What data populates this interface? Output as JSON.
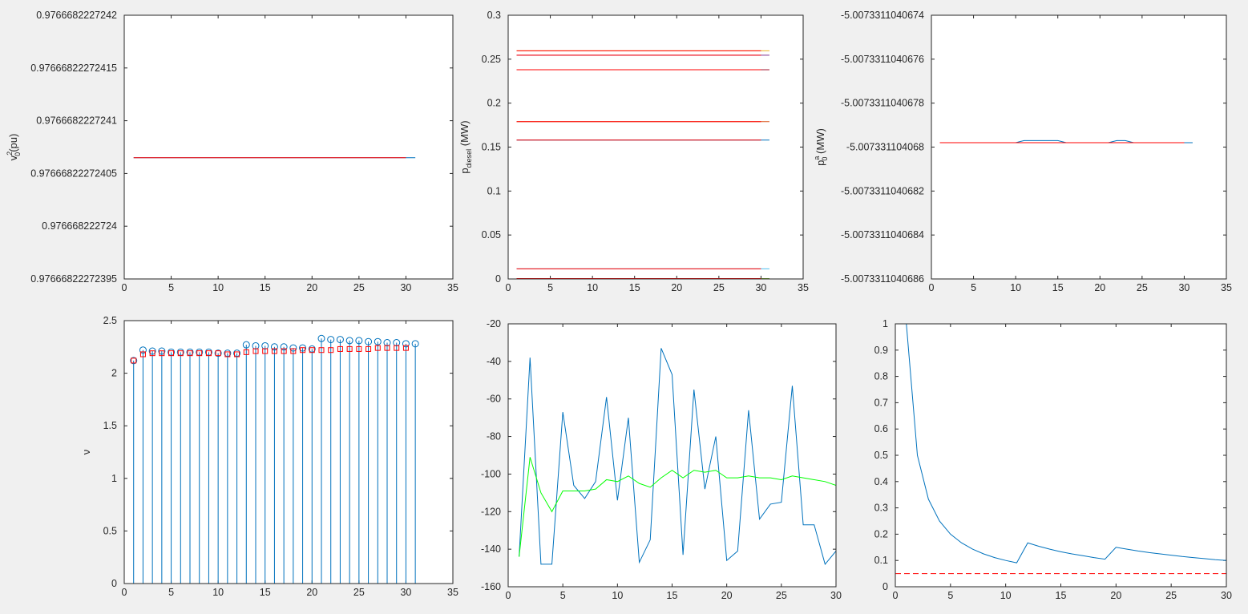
{
  "chart_data": [
    {
      "type": "line",
      "ylabel": {
        "main": "v",
        "sup": "2",
        "sub": "0",
        "unit": "(pu)"
      },
      "xlim": [
        0,
        35
      ],
      "ylim": [
        0.97666822272395,
        0.9766682227242
      ],
      "xticks": [
        "0",
        "5",
        "10",
        "15",
        "20",
        "25",
        "30",
        "35"
      ],
      "yticks": [
        "0.97666822272395",
        "0.976668222724",
        "0.97666822272405",
        "0.9766682227241",
        "0.97666822272415",
        "0.9766682227242"
      ],
      "series": [
        {
          "color": "#0072bd",
          "x": [
            1,
            31
          ],
          "y": [
            0.976668222724065,
            0.976668222724065
          ]
        },
        {
          "color": "#ff0000",
          "x": [
            1,
            30
          ],
          "y": [
            0.976668222724065,
            0.976668222724065
          ]
        }
      ]
    },
    {
      "type": "line",
      "ylabel": {
        "main": "p",
        "sub": "diesel",
        "unit": " (MW)"
      },
      "xlim": [
        0,
        35
      ],
      "ylim": [
        0,
        0.3
      ],
      "xticks": [
        "0",
        "5",
        "10",
        "15",
        "20",
        "25",
        "30",
        "35"
      ],
      "yticks": [
        "0",
        "0.05",
        "0.1",
        "0.15",
        "0.2",
        "0.25",
        "0.3"
      ],
      "series": [
        {
          "color": "#edb120",
          "x": [
            1,
            31
          ],
          "y": [
            0.2595,
            0.2595
          ]
        },
        {
          "color": "#ff0000",
          "x": [
            1,
            30
          ],
          "y": [
            0.2595,
            0.2595
          ]
        },
        {
          "color": "#7e2f8e",
          "x": [
            1,
            31
          ],
          "y": [
            0.2545,
            0.2545
          ]
        },
        {
          "color": "#ff0000",
          "x": [
            1,
            30
          ],
          "y": [
            0.2545,
            0.2545
          ]
        },
        {
          "color": "#a2142f",
          "x": [
            1,
            31
          ],
          "y": [
            0.238,
            0.238
          ]
        },
        {
          "color": "#ff0000",
          "x": [
            1,
            30
          ],
          "y": [
            0.238,
            0.238
          ]
        },
        {
          "color": "#d95319",
          "x": [
            1,
            31
          ],
          "y": [
            0.179,
            0.179
          ]
        },
        {
          "color": "#ff0000",
          "x": [
            1,
            30
          ],
          "y": [
            0.179,
            0.179
          ]
        },
        {
          "color": "#0072bd",
          "x": [
            1,
            31
          ],
          "y": [
            0.158,
            0.158
          ]
        },
        {
          "color": "#ff0000",
          "x": [
            1,
            30
          ],
          "y": [
            0.158,
            0.158
          ]
        },
        {
          "color": "#4dbeee",
          "x": [
            1,
            31
          ],
          "y": [
            0.0115,
            0.0115
          ]
        },
        {
          "color": "#ff0000",
          "x": [
            1,
            30
          ],
          "y": [
            0.0115,
            0.0115
          ]
        },
        {
          "color": "#77ac30",
          "x": [
            1,
            31
          ],
          "y": [
            0.0005,
            0.0005
          ]
        },
        {
          "color": "#ff0000",
          "x": [
            1,
            30
          ],
          "y": [
            0.0005,
            0.0005
          ]
        }
      ]
    },
    {
      "type": "line",
      "ylabel": {
        "main": "p",
        "sup": "a",
        "sub": "0",
        "unit": " (MW)"
      },
      "xlim": [
        0,
        35
      ],
      "ylim": [
        -5.0073311040686,
        -5.0073311040674
      ],
      "xticks": [
        "0",
        "5",
        "10",
        "15",
        "20",
        "25",
        "30",
        "35"
      ],
      "yticks": [
        "-5.0073311040686",
        "-5.0073311040684",
        "-5.0073311040682",
        "-5.007331104068",
        "-5.0073311040678",
        "-5.0073311040676",
        "-5.0073311040674"
      ],
      "series": [
        {
          "color": "#0072bd",
          "x": [
            1,
            10,
            11,
            15,
            16,
            21,
            22,
            23,
            24,
            31
          ],
          "y": [
            -5.00733110406798,
            -5.00733110406798,
            -5.00733110406797,
            -5.00733110406797,
            -5.00733110406798,
            -5.00733110406798,
            -5.00733110406797,
            -5.00733110406797,
            -5.00733110406798,
            -5.00733110406798
          ]
        },
        {
          "color": "#ff0000",
          "x": [
            1,
            30
          ],
          "y": [
            -5.00733110406798,
            -5.00733110406798
          ]
        }
      ]
    },
    {
      "type": "stem",
      "ylabel": {
        "main": "ν"
      },
      "xlim": [
        0,
        35
      ],
      "ylim": [
        0,
        2.5
      ],
      "xticks": [
        "0",
        "5",
        "10",
        "15",
        "20",
        "25",
        "30",
        "35"
      ],
      "yticks": [
        "0",
        "0.5",
        "1",
        "1.5",
        "2",
        "2.5"
      ],
      "stem": {
        "color": "#0072bd",
        "x": [
          1,
          2,
          3,
          4,
          5,
          6,
          7,
          8,
          9,
          10,
          11,
          12,
          13,
          14,
          15,
          16,
          17,
          18,
          19,
          20,
          21,
          22,
          23,
          24,
          25,
          26,
          27,
          28,
          29,
          30,
          31
        ],
        "y": [
          2.12,
          2.22,
          2.21,
          2.21,
          2.2,
          2.2,
          2.2,
          2.2,
          2.2,
          2.19,
          2.19,
          2.19,
          2.27,
          2.26,
          2.26,
          2.25,
          2.25,
          2.24,
          2.24,
          2.23,
          2.33,
          2.32,
          2.32,
          2.31,
          2.31,
          2.3,
          2.3,
          2.29,
          2.29,
          2.28,
          2.28
        ]
      },
      "markers": {
        "color": "#ff0000",
        "x": [
          1,
          2,
          3,
          4,
          5,
          6,
          7,
          8,
          9,
          10,
          11,
          12,
          13,
          14,
          15,
          16,
          17,
          18,
          19,
          20,
          21,
          22,
          23,
          24,
          25,
          26,
          27,
          28,
          29,
          30
        ],
        "y": [
          2.12,
          2.18,
          2.19,
          2.19,
          2.19,
          2.19,
          2.19,
          2.19,
          2.19,
          2.19,
          2.18,
          2.18,
          2.2,
          2.21,
          2.21,
          2.21,
          2.21,
          2.21,
          2.22,
          2.22,
          2.22,
          2.22,
          2.23,
          2.23,
          2.23,
          2.23,
          2.24,
          2.24,
          2.24,
          2.24
        ]
      }
    },
    {
      "type": "line",
      "xlim": [
        0,
        30
      ],
      "ylim": [
        -160,
        -20
      ],
      "xticks": [
        "0",
        "5",
        "10",
        "15",
        "20",
        "25",
        "30"
      ],
      "yticks": [
        "-160",
        "-140",
        "-120",
        "-100",
        "-80",
        "-60",
        "-40",
        "-20"
      ],
      "series": [
        {
          "color": "#0072bd",
          "x": [
            1,
            2,
            3,
            4,
            5,
            6,
            7,
            8,
            9,
            10,
            11,
            12,
            13,
            14,
            15,
            16,
            17,
            18,
            19,
            20,
            21,
            22,
            23,
            24,
            25,
            26,
            27,
            28,
            29,
            30
          ],
          "y": [
            -144,
            -38,
            -148,
            -148,
            -67,
            -106,
            -113,
            -104,
            -59,
            -114,
            -70,
            -147,
            -135,
            -33,
            -47,
            -143,
            -55,
            -108,
            -80,
            -146,
            -141,
            -66,
            -124,
            -116,
            -115,
            -53,
            -127,
            -127,
            -148,
            -141
          ]
        },
        {
          "color": "#00ff00",
          "x": [
            1,
            2,
            3,
            4,
            5,
            6,
            7,
            8,
            9,
            10,
            11,
            12,
            13,
            14,
            15,
            16,
            17,
            18,
            19,
            20,
            21,
            22,
            23,
            24,
            25,
            26,
            27,
            28,
            29,
            30
          ],
          "y": [
            -144,
            -91,
            -110,
            -120,
            -109,
            -109,
            -109,
            -108,
            -103,
            -104,
            -101,
            -105,
            -107,
            -102,
            -98,
            -102,
            -98,
            -99,
            -98,
            -102,
            -102,
            -101,
            -102,
            -102,
            -103,
            -101,
            -102,
            -103,
            -104,
            -106
          ]
        }
      ]
    },
    {
      "type": "line",
      "xlim": [
        0,
        30
      ],
      "ylim": [
        0,
        1
      ],
      "xticks": [
        "0",
        "5",
        "10",
        "15",
        "20",
        "25",
        "30"
      ],
      "yticks": [
        "0",
        "0.1",
        "0.2",
        "0.3",
        "0.4",
        "0.5",
        "0.6",
        "0.7",
        "0.8",
        "0.9",
        "1"
      ],
      "series": [
        {
          "color": "#0072bd",
          "x": [
            1,
            2,
            3,
            4,
            5,
            6,
            7,
            8,
            9,
            10,
            11,
            12,
            13,
            14,
            15,
            16,
            17,
            18,
            19,
            20,
            21,
            22,
            23,
            24,
            25,
            26,
            27,
            28,
            29,
            30
          ],
          "y": [
            1,
            0.5,
            0.333,
            0.25,
            0.2,
            0.167,
            0.143,
            0.125,
            0.111,
            0.1,
            0.091,
            0.167,
            0.154,
            0.143,
            0.133,
            0.125,
            0.118,
            0.111,
            0.105,
            0.15,
            0.143,
            0.136,
            0.13,
            0.125,
            0.12,
            0.115,
            0.111,
            0.107,
            0.103,
            0.1
          ]
        },
        {
          "color": "#ff0000",
          "dash": true,
          "x": [
            0,
            30
          ],
          "y": [
            0.05,
            0.05
          ]
        }
      ]
    }
  ]
}
